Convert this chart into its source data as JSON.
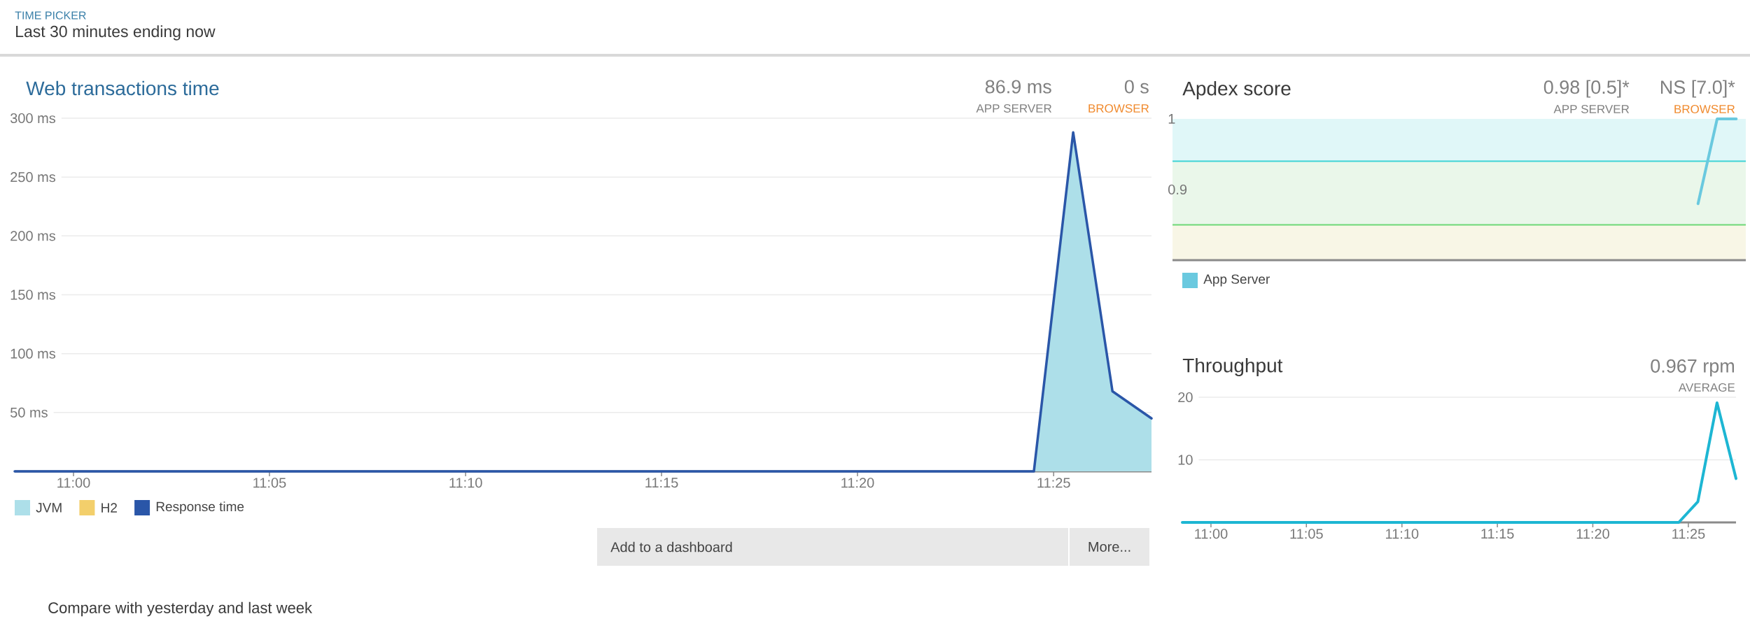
{
  "chart_data": [
    {
      "type": "area",
      "title": "Web transactions time",
      "x": [
        10.975,
        11.4083,
        11.425,
        11.4417,
        11.4583
      ],
      "series": [
        {
          "name": "JVM",
          "type": "area",
          "color": "#addfe9",
          "values": [
            null,
            0,
            288,
            68,
            45
          ]
        },
        {
          "name": "H2",
          "type": "area",
          "color": "#f3cf6b",
          "values": [
            null,
            null,
            null,
            null,
            null
          ]
        },
        {
          "name": "Response time",
          "type": "line",
          "color": "#2a56a8",
          "values": [
            0,
            0,
            288,
            68,
            45
          ]
        }
      ],
      "xlim": [
        10.975,
        11.4583
      ],
      "ylim": [
        0,
        300
      ],
      "xticks": [
        {
          "value": 11,
          "label": "11:00"
        },
        {
          "value": 11.0833,
          "label": "11:05"
        },
        {
          "value": 11.1667,
          "label": "11:10"
        },
        {
          "value": 11.25,
          "label": "11:15"
        },
        {
          "value": 11.3333,
          "label": "11:20"
        },
        {
          "value": 11.4167,
          "label": "11:25"
        }
      ],
      "yticks": [
        {
          "value": 50,
          "label": "50 ms"
        },
        {
          "value": 100,
          "label": "100 ms"
        },
        {
          "value": 150,
          "label": "150 ms"
        },
        {
          "value": 200,
          "label": "200 ms"
        },
        {
          "value": 250,
          "label": "250 ms"
        },
        {
          "value": 300,
          "label": "300 ms"
        }
      ],
      "grid": "y",
      "legend": "bottom",
      "annotations": [
        "TIME PICKER",
        "Last 30 minutes ending now",
        "86.9 ms",
        "APP SERVER",
        "0 s",
        "BROWSER",
        "Add to a dashboard",
        "More...",
        "Compare with yesterday and last week"
      ]
    },
    {
      "type": "line",
      "title": "Apdex score",
      "categories": [
        null,
        null,
        null,
        null,
        null,
        null,
        null,
        null,
        null,
        null,
        null,
        null,
        null,
        null,
        null,
        null,
        null,
        null,
        null,
        null,
        null,
        null,
        null,
        null,
        null,
        null,
        null,
        null,
        null,
        null
      ],
      "series": [
        {
          "name": "App Server",
          "color": "#6ac9df",
          "values": [
            null,
            null,
            null,
            null,
            null,
            null,
            null,
            null,
            null,
            null,
            null,
            null,
            null,
            null,
            null,
            null,
            null,
            null,
            null,
            null,
            null,
            null,
            null,
            null,
            null,
            null,
            null,
            0.88,
            1,
            1
          ]
        }
      ],
      "ylim": [
        0.8,
        1
      ],
      "yticks": [
        0.9,
        1
      ],
      "tick_labels": "y",
      "legend": "bottom",
      "bands": [
        {
          "axis": "y",
          "from": 0.94,
          "to": 1,
          "color": "#e0f7f8"
        },
        {
          "axis": "y",
          "from": 0.85,
          "to": 0.94,
          "color": "#eaf7ea"
        },
        {
          "axis": "y",
          "from": 0.8,
          "to": 0.85,
          "color": "#f8f6e6"
        }
      ],
      "ref_lines": [
        {
          "axis": "y",
          "value": 0.94,
          "color": "#3fd3d6"
        },
        {
          "axis": "y",
          "value": 0.85,
          "color": "#6dd877"
        }
      ],
      "annotations": [
        "0.98 [0.5]*",
        "APP SERVER",
        "NS [7.0]*",
        "BROWSER"
      ]
    },
    {
      "type": "line",
      "title": "Throughput",
      "x": [
        10.975,
        11.4083,
        11.425,
        11.4417,
        11.4583
      ],
      "values": [
        0,
        0,
        3.3,
        19.1,
        7
      ],
      "color": "#1db6d3",
      "xlim": [
        10.975,
        11.4583
      ],
      "ylim": [
        0,
        20
      ],
      "xticks": [
        {
          "value": 11,
          "label": "11:00"
        },
        {
          "value": 11.0833,
          "label": "11:05"
        },
        {
          "value": 11.1667,
          "label": "11:10"
        },
        {
          "value": 11.25,
          "label": "11:15"
        },
        {
          "value": 11.3333,
          "label": "11:20"
        },
        {
          "value": 11.4167,
          "label": "11:25"
        }
      ],
      "yticks": [
        10,
        20
      ],
      "grid": "y",
      "annotations": [
        "0.967 rpm",
        "AVERAGE"
      ]
    }
  ]
}
